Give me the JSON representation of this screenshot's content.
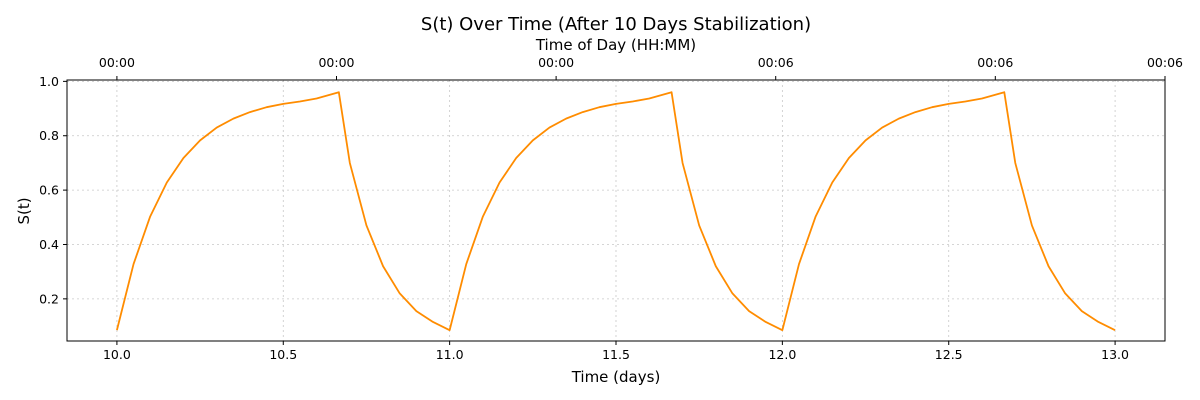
{
  "chart_data": {
    "type": "line",
    "title": "S(t) Over Time (After 10 Days Stabilization)",
    "xlabel": "Time (days)",
    "ylabel": "S(t)",
    "top_xlabel": "Time of Day (HH:MM)",
    "xlim": [
      9.85,
      13.15
    ],
    "ylim": [
      0.045,
      1.005
    ],
    "x_ticks": [
      10.0,
      10.5,
      11.0,
      11.5,
      12.0,
      12.5,
      13.0
    ],
    "x_tick_labels": [
      "10.0",
      "10.5",
      "11.0",
      "11.5",
      "12.0",
      "12.5",
      "13.0"
    ],
    "y_ticks": [
      0.2,
      0.4,
      0.6,
      0.8,
      1.0
    ],
    "y_tick_labels": [
      "0.2",
      "0.4",
      "0.6",
      "0.8",
      "1.0"
    ],
    "top_x_ticks": [
      10.0,
      10.66,
      11.32,
      11.98,
      12.64,
      13.3
    ],
    "top_x_tick_labels": [
      "00:00",
      "00:00",
      "00:00",
      "00:06",
      "00:06",
      "00:06"
    ],
    "grid": true,
    "line_color": "#ff8c00",
    "series": [
      {
        "x": [
          10.0,
          10.05,
          10.1,
          10.15,
          10.2,
          10.25,
          10.3,
          10.35,
          10.4,
          10.45,
          10.5,
          10.55,
          10.6,
          10.667,
          10.7,
          10.75,
          10.8,
          10.85,
          10.9,
          10.95,
          11.0,
          11.05,
          11.1,
          11.15,
          11.2,
          11.25,
          11.3,
          11.35,
          11.4,
          11.45,
          11.5,
          11.55,
          11.6,
          11.667,
          11.7,
          11.75,
          11.8,
          11.85,
          11.9,
          11.95,
          12.0,
          12.05,
          12.1,
          12.15,
          12.2,
          12.25,
          12.3,
          12.35,
          12.4,
          12.45,
          12.5,
          12.55,
          12.6,
          12.667,
          12.7,
          12.75,
          12.8,
          12.85,
          12.9,
          12.95,
          13.0
        ],
        "values": [
          0.085,
          0.328,
          0.503,
          0.628,
          0.718,
          0.783,
          0.83,
          0.863,
          0.887,
          0.905,
          0.917,
          0.926,
          0.937,
          0.96,
          0.7,
          0.47,
          0.32,
          0.22,
          0.155,
          0.115,
          0.085,
          0.328,
          0.503,
          0.628,
          0.718,
          0.783,
          0.83,
          0.863,
          0.887,
          0.905,
          0.917,
          0.926,
          0.937,
          0.96,
          0.7,
          0.47,
          0.32,
          0.22,
          0.155,
          0.115,
          0.085,
          0.328,
          0.503,
          0.628,
          0.718,
          0.783,
          0.83,
          0.863,
          0.887,
          0.905,
          0.917,
          0.926,
          0.937,
          0.96,
          0.7,
          0.47,
          0.32,
          0.22,
          0.155,
          0.115,
          0.085
        ]
      }
    ]
  }
}
